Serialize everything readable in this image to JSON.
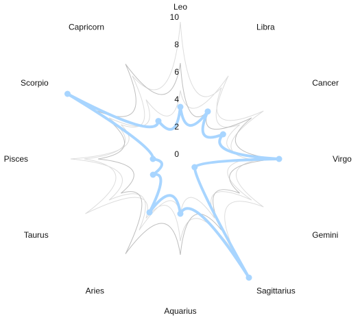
{
  "chart_data": {
    "type": "radar",
    "categories": [
      "Leo",
      "Libra",
      "Cancer",
      "Virgo",
      "Gemini",
      "Sagittarius",
      "Aquarius",
      "Aries",
      "Taurus",
      "Pisces",
      "Scorpio",
      "Capricorn"
    ],
    "rlim": [
      0,
      10
    ],
    "ticks": [
      "0",
      "2",
      "4",
      "6",
      "8",
      "10"
    ],
    "series": [
      {
        "values": [
          3.8,
          4.0,
          3.6,
          7.2,
          1.2,
          10.0,
          4.0,
          4.5,
          2.3,
          2.0,
          9.5,
          3.2
        ]
      }
    ],
    "reference_series": [
      {
        "values": [
          10,
          6,
          7,
          5,
          6,
          5,
          4,
          6,
          6,
          8,
          5,
          7
        ]
      },
      {
        "values": [
          5,
          7,
          5,
          6,
          7,
          8,
          6,
          5,
          8,
          7,
          6,
          5
        ]
      },
      {
        "values": [
          7,
          4,
          6,
          7,
          5,
          6,
          7,
          8,
          5,
          6,
          7,
          8
        ]
      }
    ],
    "line_style": "curved-petal",
    "grid": false,
    "legend": "none",
    "colors": {
      "series": "#a8d5ff",
      "reference": "#dcdcdc",
      "reference_dark": "#bdbdbd",
      "text": "#111111"
    }
  }
}
